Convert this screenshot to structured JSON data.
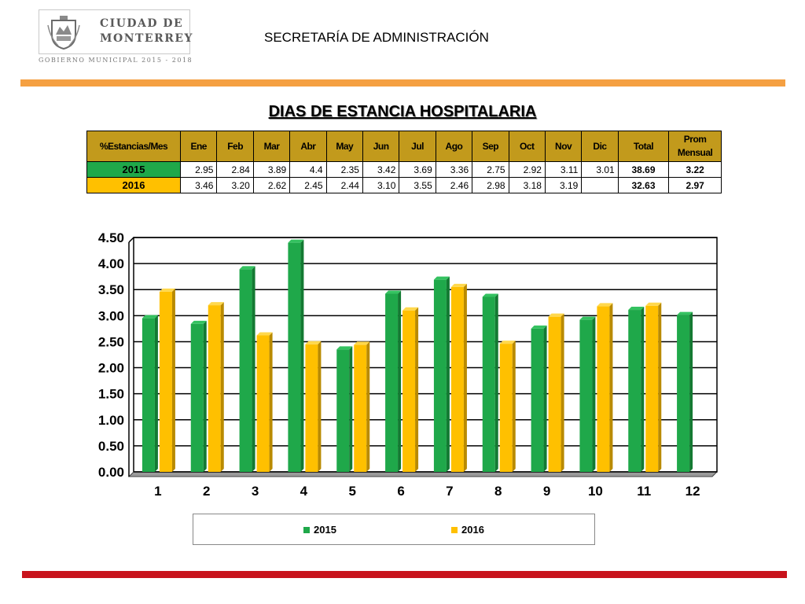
{
  "logo": {
    "line1": "CIUDAD DE",
    "line2": "MONTERREY",
    "tagline": "GOBIERNO MUNICIPAL 2015 - 2018"
  },
  "header": {
    "title": "SECRETARÍA DE ADMINISTRACIÓN"
  },
  "page_title": "DIAS DE ESTANCIA HOSPITALARIA",
  "colors": {
    "s2015": "#1fa84a",
    "s2016": "#ffc000",
    "header_bg": "#c29a1c",
    "orange_bar": "#f5a042",
    "red_bar": "#c8131c"
  },
  "table": {
    "corner": "%Estancias/Mes",
    "headers": [
      "Ene",
      "Feb",
      "Mar",
      "Abr",
      "May",
      "Jun",
      "Jul",
      "Ago",
      "Sep",
      "Oct",
      "Nov",
      "Dic",
      "Total",
      "Prom Mensual"
    ],
    "rows": [
      {
        "label": "2015",
        "cells": [
          "2.95",
          "2.84",
          "3.89",
          "4.4",
          "2.35",
          "3.42",
          "3.69",
          "3.36",
          "2.75",
          "2.92",
          "3.11",
          "3.01",
          "38.69",
          "3.22"
        ]
      },
      {
        "label": "2016",
        "cells": [
          "3.46",
          "3.20",
          "2.62",
          "2.45",
          "2.44",
          "3.10",
          "3.55",
          "2.46",
          "2.98",
          "3.18",
          "3.19",
          "",
          "32.63",
          "2.97"
        ]
      }
    ]
  },
  "chart_data": {
    "type": "bar",
    "categories": [
      "1",
      "2",
      "3",
      "4",
      "5",
      "6",
      "7",
      "8",
      "9",
      "10",
      "11",
      "12"
    ],
    "series": [
      {
        "name": "2015",
        "values": [
          2.95,
          2.84,
          3.89,
          4.4,
          2.35,
          3.42,
          3.69,
          3.36,
          2.75,
          2.92,
          3.11,
          3.01
        ]
      },
      {
        "name": "2016",
        "values": [
          3.46,
          3.2,
          2.62,
          2.45,
          2.44,
          3.1,
          3.55,
          2.46,
          2.98,
          3.18,
          3.19,
          null
        ]
      }
    ],
    "yticks": [
      "0.00",
      "0.50",
      "1.00",
      "1.50",
      "2.00",
      "2.50",
      "3.00",
      "3.50",
      "4.00",
      "4.50"
    ],
    "ylim": [
      0,
      4.5
    ],
    "grid": true,
    "legend": "bottom"
  }
}
